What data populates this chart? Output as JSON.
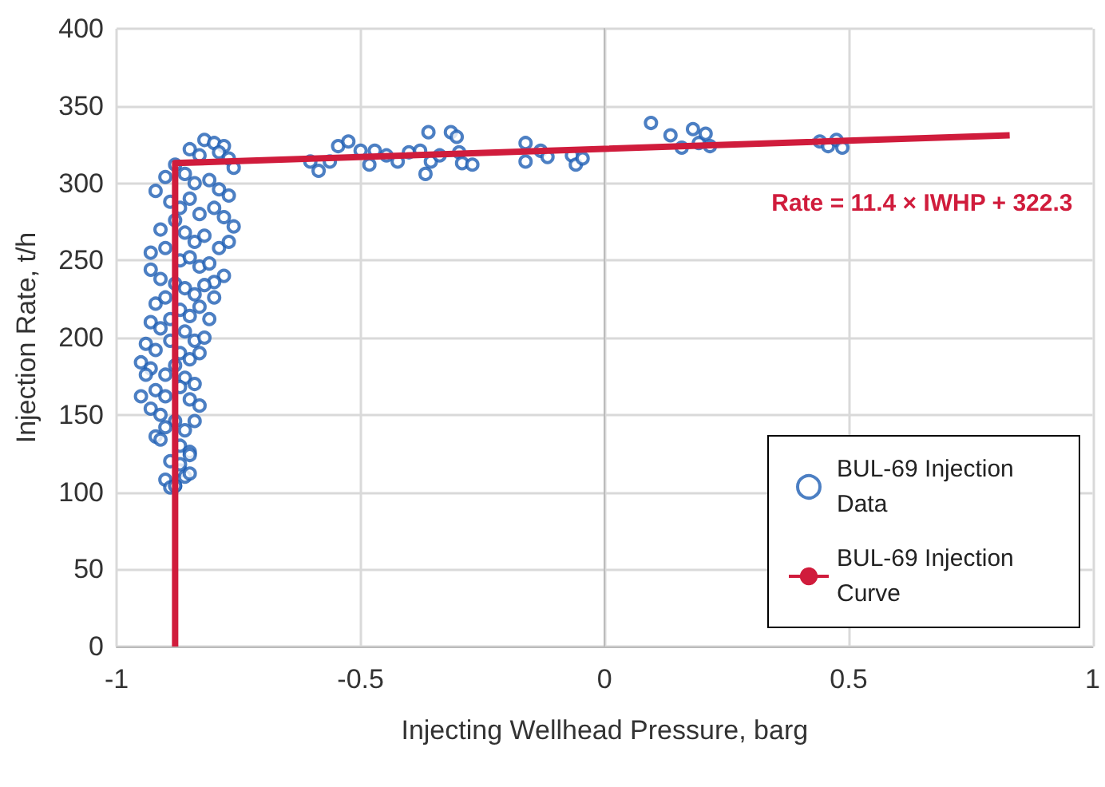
{
  "chart_data": {
    "type": "scatter",
    "xlabel": "Injecting Wellhead Pressure, barg",
    "ylabel": "Injection Rate, t/h",
    "xlim": [
      -1,
      1
    ],
    "xticks": [
      -1,
      -0.5,
      0,
      0.5,
      1
    ],
    "ylim": [
      0,
      400
    ],
    "yticks": [
      0,
      50,
      100,
      150,
      200,
      250,
      300,
      350,
      400
    ],
    "grid": true,
    "legend": "bottom right",
    "annotations": [
      "Rate = 11.4 × IWHP + 322.3"
    ],
    "series": [
      {
        "name": "BUL-69 Injection Data",
        "color": "#1f5fb4",
        "marker": "circle",
        "x": [
          -0.603,
          -0.586,
          -0.563,
          -0.546,
          -0.525,
          -0.5,
          -0.482,
          -0.471,
          -0.447,
          -0.424,
          -0.401,
          -0.378,
          -0.367,
          -0.361,
          -0.356,
          -0.338,
          -0.315,
          -0.303,
          -0.298,
          -0.292,
          -0.271,
          -0.162,
          -0.162,
          -0.131,
          -0.117,
          -0.067,
          -0.059,
          -0.045,
          0.095,
          0.135,
          0.158,
          0.181,
          0.193,
          0.207,
          0.216,
          0.441,
          0.458,
          0.475,
          0.487,
          -0.82,
          -0.8,
          -0.78,
          -0.85,
          -0.83,
          -0.79,
          -0.77,
          -0.76,
          -0.9,
          -0.88,
          -0.86,
          -0.84,
          -0.81,
          -0.79,
          -0.77,
          -0.92,
          -0.89,
          -0.87,
          -0.85,
          -0.83,
          -0.8,
          -0.78,
          -0.76,
          -0.91,
          -0.88,
          -0.86,
          -0.84,
          -0.82,
          -0.79,
          -0.77,
          -0.93,
          -0.9,
          -0.87,
          -0.85,
          -0.83,
          -0.81,
          -0.78,
          -0.8,
          -0.93,
          -0.91,
          -0.88,
          -0.86,
          -0.84,
          -0.82,
          -0.8,
          -0.92,
          -0.9,
          -0.87,
          -0.85,
          -0.83,
          -0.81,
          -0.93,
          -0.91,
          -0.89,
          -0.86,
          -0.84,
          -0.82,
          -0.94,
          -0.92,
          -0.89,
          -0.87,
          -0.85,
          -0.83,
          -0.95,
          -0.93,
          -0.9,
          -0.88,
          -0.86,
          -0.84,
          -0.94,
          -0.92,
          -0.9,
          -0.87,
          -0.85,
          -0.83,
          -0.95,
          -0.93,
          -0.91,
          -0.88,
          -0.86,
          -0.84,
          -0.92,
          -0.9,
          -0.87,
          -0.85,
          -0.91,
          -0.89,
          -0.87,
          -0.85,
          -0.9,
          -0.88,
          -0.86,
          -0.89,
          -0.87,
          -0.85,
          -0.88
        ],
        "values": [
          314,
          308,
          314,
          324,
          327,
          321,
          312,
          321,
          318,
          314,
          320,
          321,
          306,
          333,
          314,
          318,
          333,
          330,
          320,
          313,
          312,
          326,
          314,
          321,
          317,
          318,
          312,
          316,
          339,
          331,
          323,
          335,
          326,
          332,
          324,
          327,
          324,
          328,
          323,
          328,
          326,
          324,
          322,
          318,
          320,
          316,
          310,
          304,
          312,
          306,
          300,
          302,
          296,
          292,
          295,
          288,
          284,
          290,
          280,
          284,
          278,
          272,
          270,
          276,
          268,
          262,
          266,
          258,
          262,
          255,
          258,
          250,
          252,
          246,
          248,
          240,
          236,
          244,
          238,
          235,
          232,
          228,
          234,
          226,
          222,
          226,
          218,
          214,
          220,
          212,
          210,
          206,
          212,
          204,
          198,
          200,
          196,
          192,
          198,
          190,
          186,
          190,
          184,
          180,
          176,
          182,
          174,
          170,
          176,
          166,
          162,
          168,
          160,
          156,
          162,
          154,
          150,
          146,
          140,
          146,
          136,
          142,
          130,
          126,
          134,
          120,
          114,
          124,
          108,
          104,
          110,
          103,
          118,
          112,
          104
        ]
      },
      {
        "name": "BUL-69 Injection Curve",
        "type": "line",
        "color": "#d01c3c",
        "marker": "none",
        "x": [
          -0.88,
          -0.88,
          0.83
        ],
        "values": [
          0,
          313,
          331
        ]
      }
    ]
  }
}
